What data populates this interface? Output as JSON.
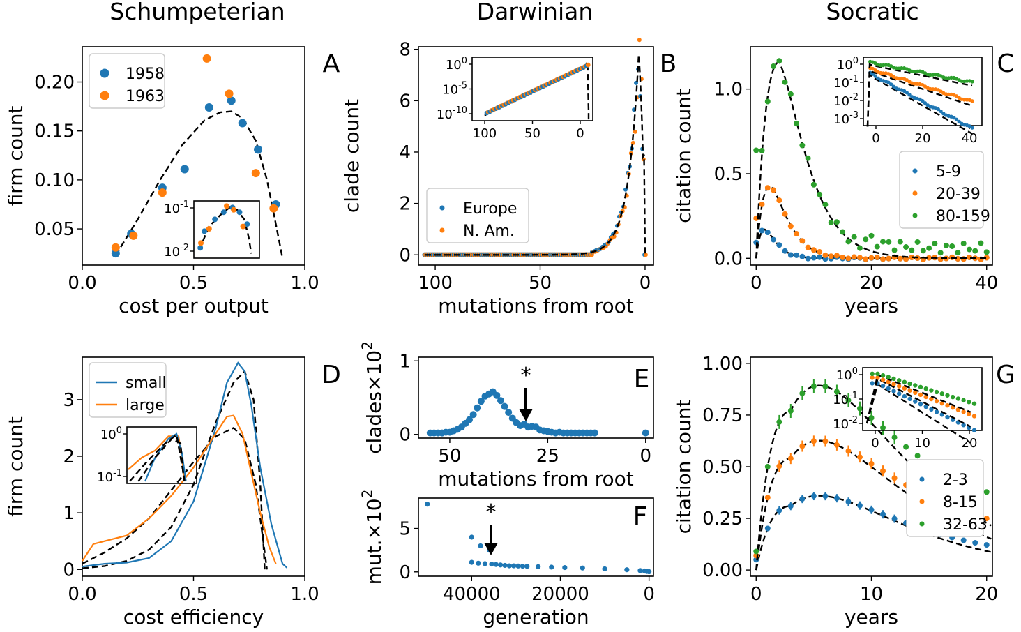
{
  "column_titles": [
    "Schumpeterian",
    "Darwinian",
    "Socratic"
  ],
  "colors": {
    "blue": "#1f77b4",
    "orange": "#ff7f0e",
    "green": "#2ca02c",
    "fit": "#000000"
  },
  "chart_data": [
    {
      "id": "A",
      "panel_label": "A",
      "type": "scatter",
      "xlabel": "cost per output",
      "ylabel": "firm count",
      "xlim": [
        0,
        1
      ],
      "ylim": [
        0.013,
        0.236
      ],
      "xticks": [
        "0.0",
        "0.5",
        "1.0"
      ],
      "yticks": [
        "0.05",
        "0.10",
        "0.15",
        "0.20"
      ],
      "legend": "top-left",
      "series": [
        {
          "name": "1958",
          "color": "#1f77b4",
          "x": [
            0.15,
            0.22,
            0.36,
            0.46,
            0.57,
            0.67,
            0.72,
            0.79,
            0.87
          ],
          "y": [
            0.025,
            0.045,
            0.092,
            0.111,
            0.174,
            0.181,
            0.158,
            0.131,
            0.075
          ]
        },
        {
          "name": "1963",
          "color": "#ff7f0e",
          "x": [
            0.15,
            0.23,
            0.36,
            0.56,
            0.66,
            0.78,
            0.86
          ],
          "y": [
            0.031,
            0.043,
            0.087,
            0.224,
            0.188,
            0.107,
            0.071
          ]
        }
      ],
      "fit": {
        "x": [
          0.15,
          0.25,
          0.35,
          0.45,
          0.55,
          0.62,
          0.67,
          0.72,
          0.78,
          0.83,
          0.87,
          0.9
        ],
        "y": [
          0.023,
          0.06,
          0.1,
          0.136,
          0.161,
          0.169,
          0.17,
          0.163,
          0.14,
          0.1,
          0.055,
          0.02
        ]
      },
      "inset": {
        "yscale": "log",
        "yticks": [
          "10^-1",
          "10^-2"
        ]
      }
    },
    {
      "id": "B",
      "panel_label": "B",
      "type": "scatter",
      "xlabel": "mutations from root",
      "ylabel": "clade count",
      "xlim": [
        108,
        -4
      ],
      "ylim": [
        -0.4,
        8.1
      ],
      "xticks": [
        "100",
        "50",
        "0"
      ],
      "yticks": [
        "0",
        "2",
        "4",
        "6",
        "8"
      ],
      "legend": "lower-left",
      "series": [
        {
          "name": "Europe",
          "color": "#1f77b4"
        },
        {
          "name": "N. Am.",
          "color": "#ff7f0e"
        }
      ],
      "fit": {
        "x": [
          105,
          60,
          40,
          30,
          25,
          20,
          15,
          10,
          6,
          3,
          1,
          0
        ],
        "y": [
          0,
          0,
          0.01,
          0.04,
          0.12,
          0.35,
          0.95,
          2.3,
          4.8,
          7.8,
          2,
          0
        ]
      },
      "inset": {
        "yscale": "log",
        "yticks": [
          "10^0",
          "10^-5",
          "10^-10"
        ],
        "xticks": [
          "100",
          "50",
          "0"
        ]
      }
    },
    {
      "id": "C",
      "panel_label": "C",
      "type": "scatter",
      "xlabel": "years",
      "ylabel": "citation count",
      "xlim": [
        -1,
        41
      ],
      "ylim": [
        -0.04,
        1.25
      ],
      "xticks": [
        "0",
        "20",
        "40"
      ],
      "yticks": [
        "0.0",
        "0.5",
        "1.0"
      ],
      "legend": "right",
      "series": [
        {
          "name": "5-9",
          "color": "#1f77b4",
          "peak": 0.17,
          "peak_x": 1.5,
          "decay": 7
        },
        {
          "name": "20-39",
          "color": "#ff7f0e",
          "peak": 0.43,
          "peak_x": 2.5,
          "decay": 6
        },
        {
          "name": "80-159",
          "color": "#2ca02c",
          "peak": 1.16,
          "peak_x": 4,
          "decay": 8
        }
      ],
      "inset": {
        "yscale": "log",
        "yticks": [
          "10^0",
          "10^-1",
          "10^-2",
          "10^-3"
        ],
        "xticks": [
          "0",
          "20",
          "40"
        ]
      }
    },
    {
      "id": "D",
      "panel_label": "D",
      "type": "line",
      "xlabel": "cost efficiency",
      "ylabel": "firm count",
      "xlim": [
        0,
        1
      ],
      "ylim": [
        -0.12,
        3.75
      ],
      "xticks": [
        "0.0",
        "0.5",
        "1.0"
      ],
      "yticks": [
        "0",
        "1",
        "2",
        "3"
      ],
      "legend": "top-left",
      "series": [
        {
          "name": "small",
          "color": "#1f77b4",
          "x": [
            0,
            0.1,
            0.2,
            0.3,
            0.4,
            0.5,
            0.6,
            0.65,
            0.7,
            0.73,
            0.76,
            0.8,
            0.85,
            0.9,
            0.92
          ],
          "y": [
            0.05,
            0.1,
            0.12,
            0.2,
            0.5,
            1.2,
            2.5,
            3.3,
            3.65,
            3.5,
            2.9,
            1.8,
            0.8,
            0.1,
            0.03
          ]
        },
        {
          "name": "large",
          "color": "#ff7f0e",
          "x": [
            0,
            0.05,
            0.1,
            0.2,
            0.3,
            0.4,
            0.5,
            0.6,
            0.65,
            0.68,
            0.72,
            0.76,
            0.8,
            0.84,
            0.87
          ],
          "y": [
            0.15,
            0.45,
            0.5,
            0.6,
            0.9,
            1.3,
            1.8,
            2.4,
            2.7,
            2.72,
            2.4,
            1.7,
            1,
            0.4,
            0.1
          ]
        }
      ],
      "fits": [
        {
          "x": [
            0,
            0.1,
            0.2,
            0.3,
            0.4,
            0.5,
            0.6,
            0.68,
            0.73,
            0.77,
            0.8,
            0.82
          ],
          "y": [
            0.02,
            0.06,
            0.15,
            0.35,
            0.75,
            1.5,
            2.6,
            3.3,
            3.5,
            3.0,
            1.5,
            0
          ]
        },
        {
          "x": [
            0,
            0.1,
            0.2,
            0.3,
            0.4,
            0.5,
            0.6,
            0.68,
            0.73,
            0.78,
            0.81,
            0.83
          ],
          "y": [
            0.1,
            0.3,
            0.55,
            0.9,
            1.4,
            1.9,
            2.35,
            2.5,
            2.3,
            1.5,
            0.6,
            0
          ]
        }
      ],
      "inset": {
        "yscale": "log",
        "yticks": [
          "10^0",
          "10^-1"
        ]
      }
    },
    {
      "id": "E",
      "panel_label": "E",
      "type": "scatter",
      "xlabel": "mutations from root",
      "ylabel": "clades×10^2",
      "xlim": [
        58,
        -2
      ],
      "ylim": [
        -0.05,
        1.05
      ],
      "xticks": [
        "50",
        "25",
        "0"
      ],
      "yticks": [
        "0",
        "1"
      ],
      "annotation": "*",
      "series": [
        {
          "name": "",
          "color": "#1f77b4",
          "x": [
            55,
            54,
            53,
            52,
            51,
            50,
            49,
            48,
            47,
            46,
            45,
            44,
            43,
            42,
            41,
            40,
            39,
            38,
            37,
            36,
            35,
            34,
            33,
            32,
            31,
            30,
            29,
            28,
            27,
            26,
            25,
            24,
            23,
            22,
            21,
            20,
            19,
            18,
            17,
            16,
            15,
            14,
            13,
            0
          ],
          "y": [
            0.02,
            0.02,
            0.02,
            0.02,
            0.03,
            0.03,
            0.05,
            0.07,
            0.1,
            0.15,
            0.2,
            0.27,
            0.36,
            0.45,
            0.52,
            0.55,
            0.58,
            0.53,
            0.46,
            0.38,
            0.3,
            0.22,
            0.16,
            0.12,
            0.14,
            0.1,
            0.11,
            0.1,
            0.06,
            0.05,
            0.04,
            0.03,
            0.02,
            0.03,
            0.02,
            0.02,
            0.02,
            0.02,
            0.02,
            0.02,
            0.02,
            0.02,
            0.02,
            0.02
          ]
        }
      ]
    },
    {
      "id": "F",
      "panel_label": "F",
      "type": "scatter",
      "xlabel": "generation",
      "ylabel": "mut.×10^2",
      "xlim": [
        52000,
        -1000
      ],
      "ylim": [
        -0.5,
        8.5
      ],
      "xticks": [
        "40000",
        "20000",
        "0"
      ],
      "yticks": [
        "0",
        "5"
      ],
      "annotation": "*",
      "series": [
        {
          "name": "",
          "color": "#1f77b4",
          "x": [
            50000,
            40000,
            38000,
            36000,
            40000,
            38500,
            37000,
            35500,
            34500,
            33500,
            32500,
            31500,
            30500,
            29500,
            28500,
            27500,
            25000,
            22000,
            19000,
            15000,
            10000,
            5000,
            2000,
            1000,
            500,
            0
          ],
          "y": [
            7.8,
            4,
            3,
            2.5,
            1.1,
            1,
            0.95,
            0.9,
            0.85,
            0.8,
            0.75,
            0.7,
            0.7,
            0.68,
            0.66,
            0.64,
            0.6,
            0.55,
            0.5,
            0.45,
            0.35,
            0.25,
            0.15,
            0.1,
            0.05,
            0.02
          ]
        }
      ]
    },
    {
      "id": "G",
      "panel_label": "G",
      "type": "scatter",
      "xlabel": "years",
      "ylabel": "citation count",
      "xlim": [
        -0.5,
        20.5
      ],
      "ylim": [
        -0.03,
        1.03
      ],
      "xticks": [
        "0",
        "10",
        "20"
      ],
      "yticks": [
        "0.00",
        "0.25",
        "0.50",
        "0.75",
        "1.00"
      ],
      "legend": "right",
      "series": [
        {
          "name": "2-3",
          "color": "#1f77b4",
          "peak": 0.31,
          "peak_x": 3,
          "tail": 0.03
        },
        {
          "name": "8-15",
          "color": "#ff7f0e",
          "peak": 0.54,
          "peak_x": 3,
          "tail": 0.09
        },
        {
          "name": "32-63",
          "color": "#2ca02c",
          "peak": 0.77,
          "peak_x": 3,
          "tail": 0.15
        }
      ],
      "inset": {
        "yscale": "log",
        "yticks": [
          "10^0",
          "10^-1",
          "10^-2"
        ],
        "xticks": [
          "0",
          "10",
          "20"
        ]
      }
    }
  ]
}
